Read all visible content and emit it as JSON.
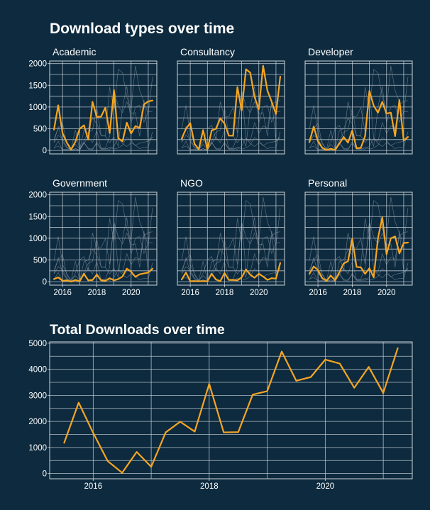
{
  "colors": {
    "background": "#0d2a3e",
    "grid": "#cfd6dc",
    "highlight": "#f5a623",
    "context": "#9aa8b4",
    "text": "#ffffff"
  },
  "chart_data": [
    {
      "type": "line",
      "title": "Download types over time",
      "facets": [
        "Academic",
        "Consultancy",
        "Developer",
        "Government",
        "NGO",
        "Personal"
      ],
      "x": [
        "2015-07",
        "2015-10",
        "2016-01",
        "2016-04",
        "2016-07",
        "2016-10",
        "2017-01",
        "2017-04",
        "2017-07",
        "2017-10",
        "2018-01",
        "2018-04",
        "2018-07",
        "2018-10",
        "2019-01",
        "2019-04",
        "2019-07",
        "2019-10",
        "2020-01",
        "2020-04",
        "2020-07",
        "2020-10",
        "2021-01",
        "2021-04"
      ],
      "x_ticks": [
        {
          "label": "2016",
          "value": "2016-01"
        },
        {
          "label": "2018",
          "value": "2018-01"
        },
        {
          "label": "2020",
          "value": "2020-01"
        }
      ],
      "y_ticks": [
        0,
        500,
        1000,
        1500,
        2000
      ],
      "ylim": [
        -80,
        2060
      ],
      "series": [
        {
          "name": "Academic",
          "values": [
            480,
            1040,
            400,
            180,
            20,
            200,
            500,
            580,
            250,
            1120,
            770,
            780,
            990,
            400,
            1390,
            280,
            210,
            640,
            390,
            560,
            520,
            1060,
            1130,
            1150
          ]
        },
        {
          "name": "Consultancy",
          "values": [
            270,
            500,
            630,
            150,
            30,
            470,
            20,
            460,
            500,
            740,
            620,
            340,
            340,
            1460,
            920,
            1870,
            1790,
            1230,
            950,
            1950,
            1380,
            1120,
            840,
            1700
          ]
        },
        {
          "name": "Developer",
          "values": [
            190,
            550,
            210,
            60,
            10,
            40,
            10,
            160,
            310,
            180,
            460,
            50,
            60,
            330,
            1370,
            1030,
            870,
            1120,
            850,
            870,
            330,
            1160,
            230,
            310
          ]
        },
        {
          "name": "Government",
          "values": [
            60,
            100,
            20,
            30,
            0,
            40,
            10,
            180,
            30,
            40,
            160,
            30,
            20,
            80,
            30,
            60,
            120,
            300,
            230,
            110,
            170,
            190,
            210,
            300
          ]
        },
        {
          "name": "NGO",
          "values": [
            50,
            210,
            10,
            10,
            10,
            10,
            10,
            180,
            50,
            10,
            200,
            40,
            40,
            30,
            100,
            280,
            160,
            90,
            180,
            120,
            40,
            80,
            70,
            430
          ]
        },
        {
          "name": "Personal",
          "values": [
            180,
            350,
            270,
            80,
            20,
            140,
            30,
            220,
            420,
            470,
            990,
            340,
            330,
            180,
            310,
            100,
            1000,
            1480,
            630,
            1000,
            1040,
            650,
            890,
            900
          ]
        }
      ]
    },
    {
      "type": "line",
      "title": "Total Downloads over time",
      "x": [
        "2015-07",
        "2015-10",
        "2016-01",
        "2016-04",
        "2016-07",
        "2016-10",
        "2017-01",
        "2017-04",
        "2017-07",
        "2017-10",
        "2018-01",
        "2018-04",
        "2018-07",
        "2018-10",
        "2019-01",
        "2019-04",
        "2019-07",
        "2019-10",
        "2020-01",
        "2020-04",
        "2020-07",
        "2020-10",
        "2021-01",
        "2021-04"
      ],
      "x_ticks": [
        {
          "label": "2016",
          "value": "2016-01"
        },
        {
          "label": "2018",
          "value": "2018-01"
        },
        {
          "label": "2020",
          "value": "2020-01"
        }
      ],
      "y_ticks": [
        0,
        1000,
        2000,
        3000,
        4000,
        5000
      ],
      "ylim": [
        -200,
        5050
      ],
      "values": [
        1180,
        2720,
        1560,
        480,
        30,
        830,
        260,
        1580,
        1990,
        1610,
        3440,
        1580,
        1590,
        3030,
        3160,
        4680,
        3560,
        3700,
        4370,
        4220,
        3290,
        4090,
        3090,
        4810
      ]
    }
  ]
}
